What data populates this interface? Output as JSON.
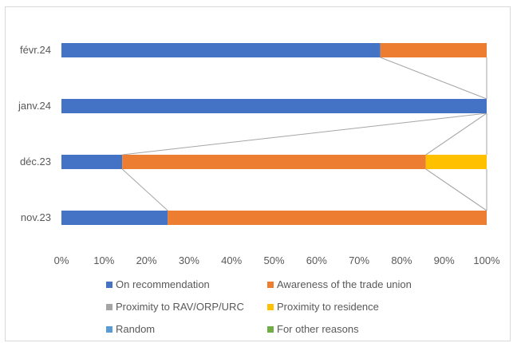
{
  "chart_data": {
    "type": "bar",
    "orientation": "horizontal",
    "stacked": "percent",
    "categories": [
      "févr.24",
      "janv.24",
      "déc.23",
      "nov.23"
    ],
    "x_ticks": [
      "0%",
      "10%",
      "20%",
      "30%",
      "40%",
      "50%",
      "60%",
      "70%",
      "80%",
      "90%",
      "100%"
    ],
    "xlim": [
      0,
      100
    ],
    "grid": false,
    "series_lines": true,
    "legend_position": "bottom",
    "series": [
      {
        "name": "On recommendation",
        "color": "#4472C4",
        "values": [
          75,
          100,
          14.3,
          25
        ]
      },
      {
        "name": "Awareness of the trade union",
        "color": "#ED7D31",
        "values": [
          25,
          0,
          71.4,
          75
        ]
      },
      {
        "name": "Proximity to RAV/ORP/URC",
        "color": "#A5A5A5",
        "values": [
          0,
          0,
          0,
          0
        ]
      },
      {
        "name": "Proximity to residence",
        "color": "#FFC000",
        "values": [
          0,
          0,
          14.3,
          0
        ]
      },
      {
        "name": "Random",
        "color": "#5B9BD5",
        "values": [
          0,
          0,
          0,
          0
        ]
      },
      {
        "name": "For other reasons",
        "color": "#70AD47",
        "values": [
          0,
          0,
          0,
          0
        ]
      }
    ]
  }
}
